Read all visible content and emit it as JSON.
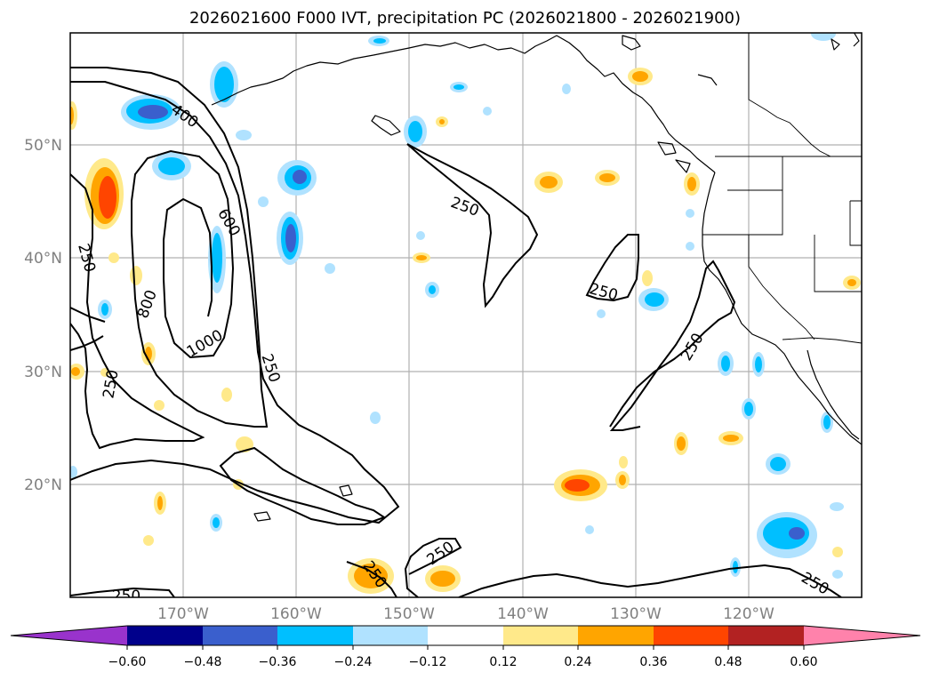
{
  "title": "2026021600 F000 IVT, precipitation PC (2026021800 - 2026021900)",
  "map": {
    "latitude_labels": [
      "50°N",
      "40°N",
      "30°N",
      "20°N"
    ],
    "longitude_labels": [
      "170°W",
      "160°W",
      "150°W",
      "140°W",
      "130°W",
      "120°W"
    ],
    "ivt_contour_labels": [
      "250",
      "250",
      "250",
      "250",
      "250",
      "250",
      "250",
      "250",
      "250",
      "250",
      "400",
      "600",
      "800",
      "1000"
    ],
    "extent": {
      "lon_min": -180,
      "lon_max": -110,
      "lat_min": 10,
      "lat_max": 60
    }
  },
  "colorbar": {
    "ticks": [
      "−0.60",
      "−0.48",
      "−0.36",
      "−0.24",
      "−0.12",
      "0.12",
      "0.24",
      "0.36",
      "0.48",
      "0.60"
    ],
    "colors": {
      "lt_neg060": "#9933cc",
      "neg060_neg048": "#00008b",
      "neg048_neg036": "#3a5fcd",
      "neg036_neg024": "#00bfff",
      "neg024_neg012": "#b0e2ff",
      "neg012_012": "#ffffff",
      "p012_024": "#ffe98a",
      "p024_036": "#ffa500",
      "p036_048": "#ff4500",
      "p048_060": "#b22222",
      "gt_060": "#ff82ab"
    }
  }
}
